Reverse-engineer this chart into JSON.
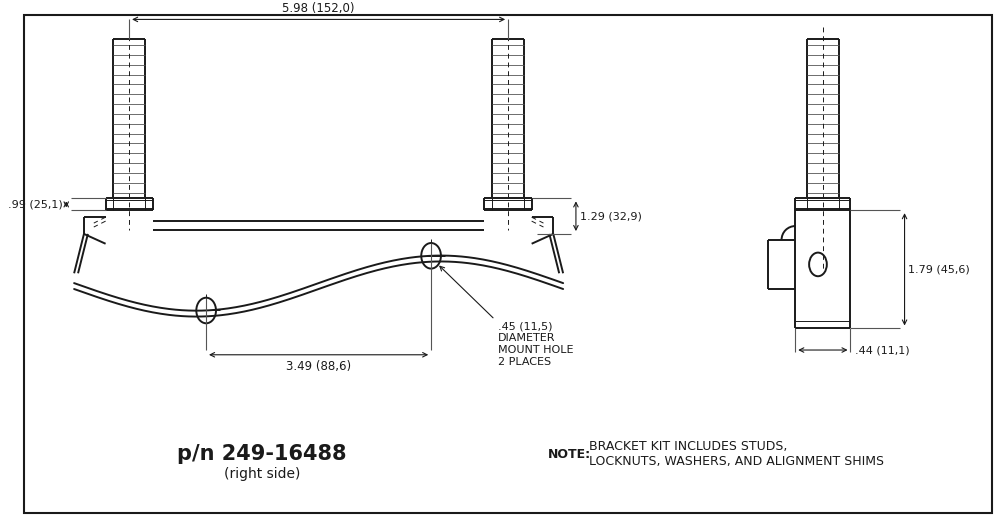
{
  "bg_color": "#ffffff",
  "line_color": "#1a1a1a",
  "lw_main": 1.4,
  "lw_dim": 0.8,
  "lw_thread": 0.6,
  "title_pn": "p/n 249-16488",
  "title_sub": "(right side)",
  "note_bold": "NOTE:",
  "note_rest": " BRACKET KIT INCLUDES STUDS,\nLOCKNUTS, WASHERS, AND ALIGNMENT SHIMS",
  "dim_top": "5.98 (152,0)",
  "dim_bottom": "3.49 (88,6)",
  "dim_left": ".99 (25,1)",
  "dim_right_top": "1.29 (32,9)",
  "dim_right_side": "1.79 (45,6)",
  "dim_right_bottom": ".44 (11,1)",
  "dim_hole": ".45 (11,5)\nDIAMETER\nMOUNT HOLE\n2 PLACES"
}
